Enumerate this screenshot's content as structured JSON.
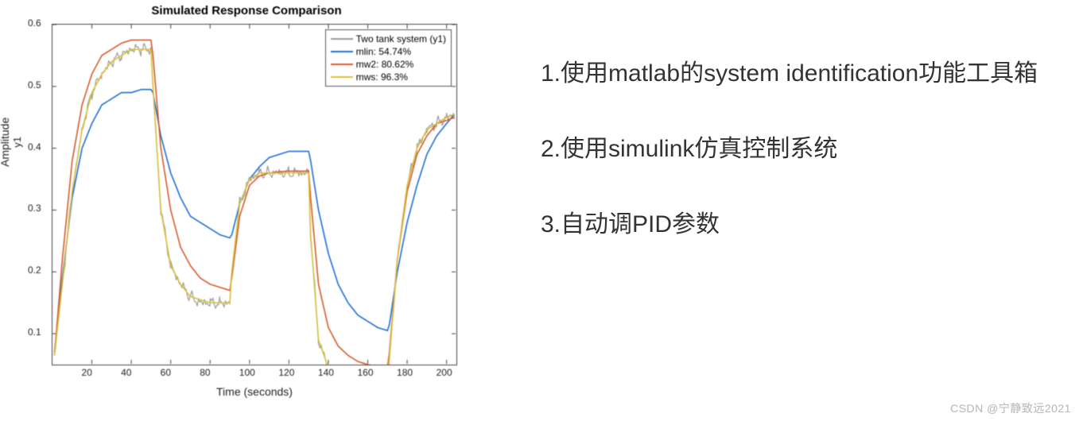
{
  "chart": {
    "type": "line",
    "title": "Simulated Response Comparison",
    "title_fontsize": 15,
    "title_fontweight": "bold",
    "xlabel": "Time (seconds)",
    "ylabel_line1": "Amplitude",
    "ylabel_line2": "y1",
    "label_fontsize": 14,
    "tick_fontsize": 12,
    "background_color": "#ffffff",
    "axes_color": "#444444",
    "xlim": [
      0,
      205
    ],
    "ylim": [
      0.05,
      0.6
    ],
    "xticks": [
      20,
      40,
      60,
      80,
      100,
      120,
      140,
      160,
      180,
      200
    ],
    "yticks": [
      0.1,
      0.2,
      0.3,
      0.4,
      0.5,
      0.6
    ],
    "legend": {
      "position": "top-right",
      "border_color": "#555555",
      "items": [
        {
          "label": "Two tank system (y1)",
          "color": "#9c9c94"
        },
        {
          "label": "mlin: 54.74%",
          "color": "#1e6fd8"
        },
        {
          "label": "mw2: 80.62%",
          "color": "#d85a2b"
        },
        {
          "label": "mws: 96.3%",
          "color": "#d8c03a"
        }
      ]
    },
    "series": [
      {
        "name": "Two tank system (y1)",
        "color": "#9c9c94",
        "line_width": 1.2,
        "noisy": true,
        "noise_amp": 0.012,
        "x": [
          1,
          5,
          10,
          15,
          20,
          25,
          30,
          35,
          40,
          45,
          50,
          51,
          55,
          60,
          65,
          70,
          75,
          80,
          85,
          90,
          91,
          95,
          100,
          105,
          110,
          115,
          120,
          125,
          130,
          131,
          135,
          140,
          145,
          150,
          155,
          160,
          165,
          170,
          171,
          175,
          180,
          185,
          190,
          195,
          200,
          204
        ],
        "y": [
          0.065,
          0.18,
          0.33,
          0.43,
          0.49,
          0.52,
          0.54,
          0.55,
          0.56,
          0.56,
          0.56,
          0.5,
          0.3,
          0.21,
          0.18,
          0.16,
          0.15,
          0.15,
          0.15,
          0.15,
          0.2,
          0.31,
          0.35,
          0.36,
          0.36,
          0.36,
          0.36,
          0.36,
          0.36,
          0.26,
          0.09,
          0.045,
          0.033,
          0.028,
          0.026,
          0.025,
          0.025,
          0.025,
          0.06,
          0.22,
          0.34,
          0.4,
          0.43,
          0.44,
          0.45,
          0.455
        ]
      },
      {
        "name": "mlin",
        "color": "#1e6fd8",
        "line_width": 1.6,
        "noisy": false,
        "x": [
          1,
          5,
          10,
          15,
          20,
          25,
          30,
          35,
          40,
          45,
          50,
          51,
          55,
          60,
          65,
          70,
          75,
          80,
          85,
          90,
          91,
          95,
          100,
          105,
          110,
          115,
          120,
          125,
          130,
          131,
          135,
          140,
          145,
          150,
          155,
          160,
          165,
          170,
          171,
          175,
          180,
          185,
          190,
          195,
          200,
          204
        ],
        "y": [
          0.07,
          0.19,
          0.32,
          0.4,
          0.44,
          0.47,
          0.48,
          0.49,
          0.49,
          0.495,
          0.495,
          0.49,
          0.42,
          0.36,
          0.32,
          0.29,
          0.28,
          0.27,
          0.26,
          0.255,
          0.26,
          0.31,
          0.35,
          0.37,
          0.385,
          0.39,
          0.395,
          0.395,
          0.395,
          0.38,
          0.3,
          0.23,
          0.18,
          0.15,
          0.13,
          0.12,
          0.11,
          0.105,
          0.115,
          0.2,
          0.28,
          0.34,
          0.39,
          0.42,
          0.44,
          0.455
        ]
      },
      {
        "name": "mw2",
        "color": "#d85a2b",
        "line_width": 1.6,
        "noisy": false,
        "x": [
          1,
          5,
          10,
          15,
          20,
          25,
          30,
          35,
          40,
          45,
          50,
          51,
          55,
          60,
          65,
          70,
          75,
          80,
          85,
          90,
          91,
          95,
          100,
          105,
          110,
          115,
          120,
          125,
          130,
          131,
          135,
          140,
          145,
          150,
          155,
          160,
          165,
          170,
          171,
          175,
          180,
          185,
          190,
          195,
          200,
          204
        ],
        "y": [
          0.065,
          0.22,
          0.38,
          0.47,
          0.52,
          0.55,
          0.56,
          0.57,
          0.575,
          0.575,
          0.575,
          0.55,
          0.4,
          0.3,
          0.24,
          0.21,
          0.19,
          0.18,
          0.175,
          0.17,
          0.19,
          0.29,
          0.34,
          0.355,
          0.36,
          0.362,
          0.363,
          0.363,
          0.363,
          0.32,
          0.18,
          0.11,
          0.08,
          0.065,
          0.055,
          0.05,
          0.047,
          0.045,
          0.07,
          0.22,
          0.33,
          0.39,
          0.42,
          0.44,
          0.445,
          0.45
        ]
      },
      {
        "name": "mws",
        "color": "#d8c03a",
        "line_width": 1.6,
        "noisy": false,
        "x": [
          1,
          5,
          10,
          15,
          20,
          25,
          30,
          35,
          40,
          45,
          50,
          51,
          55,
          60,
          65,
          70,
          75,
          80,
          85,
          90,
          91,
          95,
          100,
          105,
          110,
          115,
          120,
          125,
          130,
          131,
          135,
          140,
          145,
          150,
          155,
          160,
          165,
          170,
          171,
          175,
          180,
          185,
          190,
          195,
          200,
          204
        ],
        "y": [
          0.065,
          0.18,
          0.33,
          0.43,
          0.49,
          0.52,
          0.54,
          0.55,
          0.56,
          0.56,
          0.56,
          0.5,
          0.3,
          0.21,
          0.18,
          0.16,
          0.155,
          0.15,
          0.15,
          0.15,
          0.2,
          0.31,
          0.35,
          0.36,
          0.36,
          0.36,
          0.36,
          0.36,
          0.36,
          0.26,
          0.09,
          0.045,
          0.035,
          0.03,
          0.028,
          0.027,
          0.027,
          0.027,
          0.06,
          0.22,
          0.34,
          0.4,
          0.43,
          0.44,
          0.45,
          0.455
        ]
      }
    ]
  },
  "notes": {
    "item1": "1.使用matlab的system identification功能工具箱",
    "item2": "2.使用simulink仿真控制系统",
    "item3": "3.自动调PID参数",
    "fontsize": 30,
    "color": "#333333"
  },
  "watermark": "CSDN @宁静致远2021"
}
